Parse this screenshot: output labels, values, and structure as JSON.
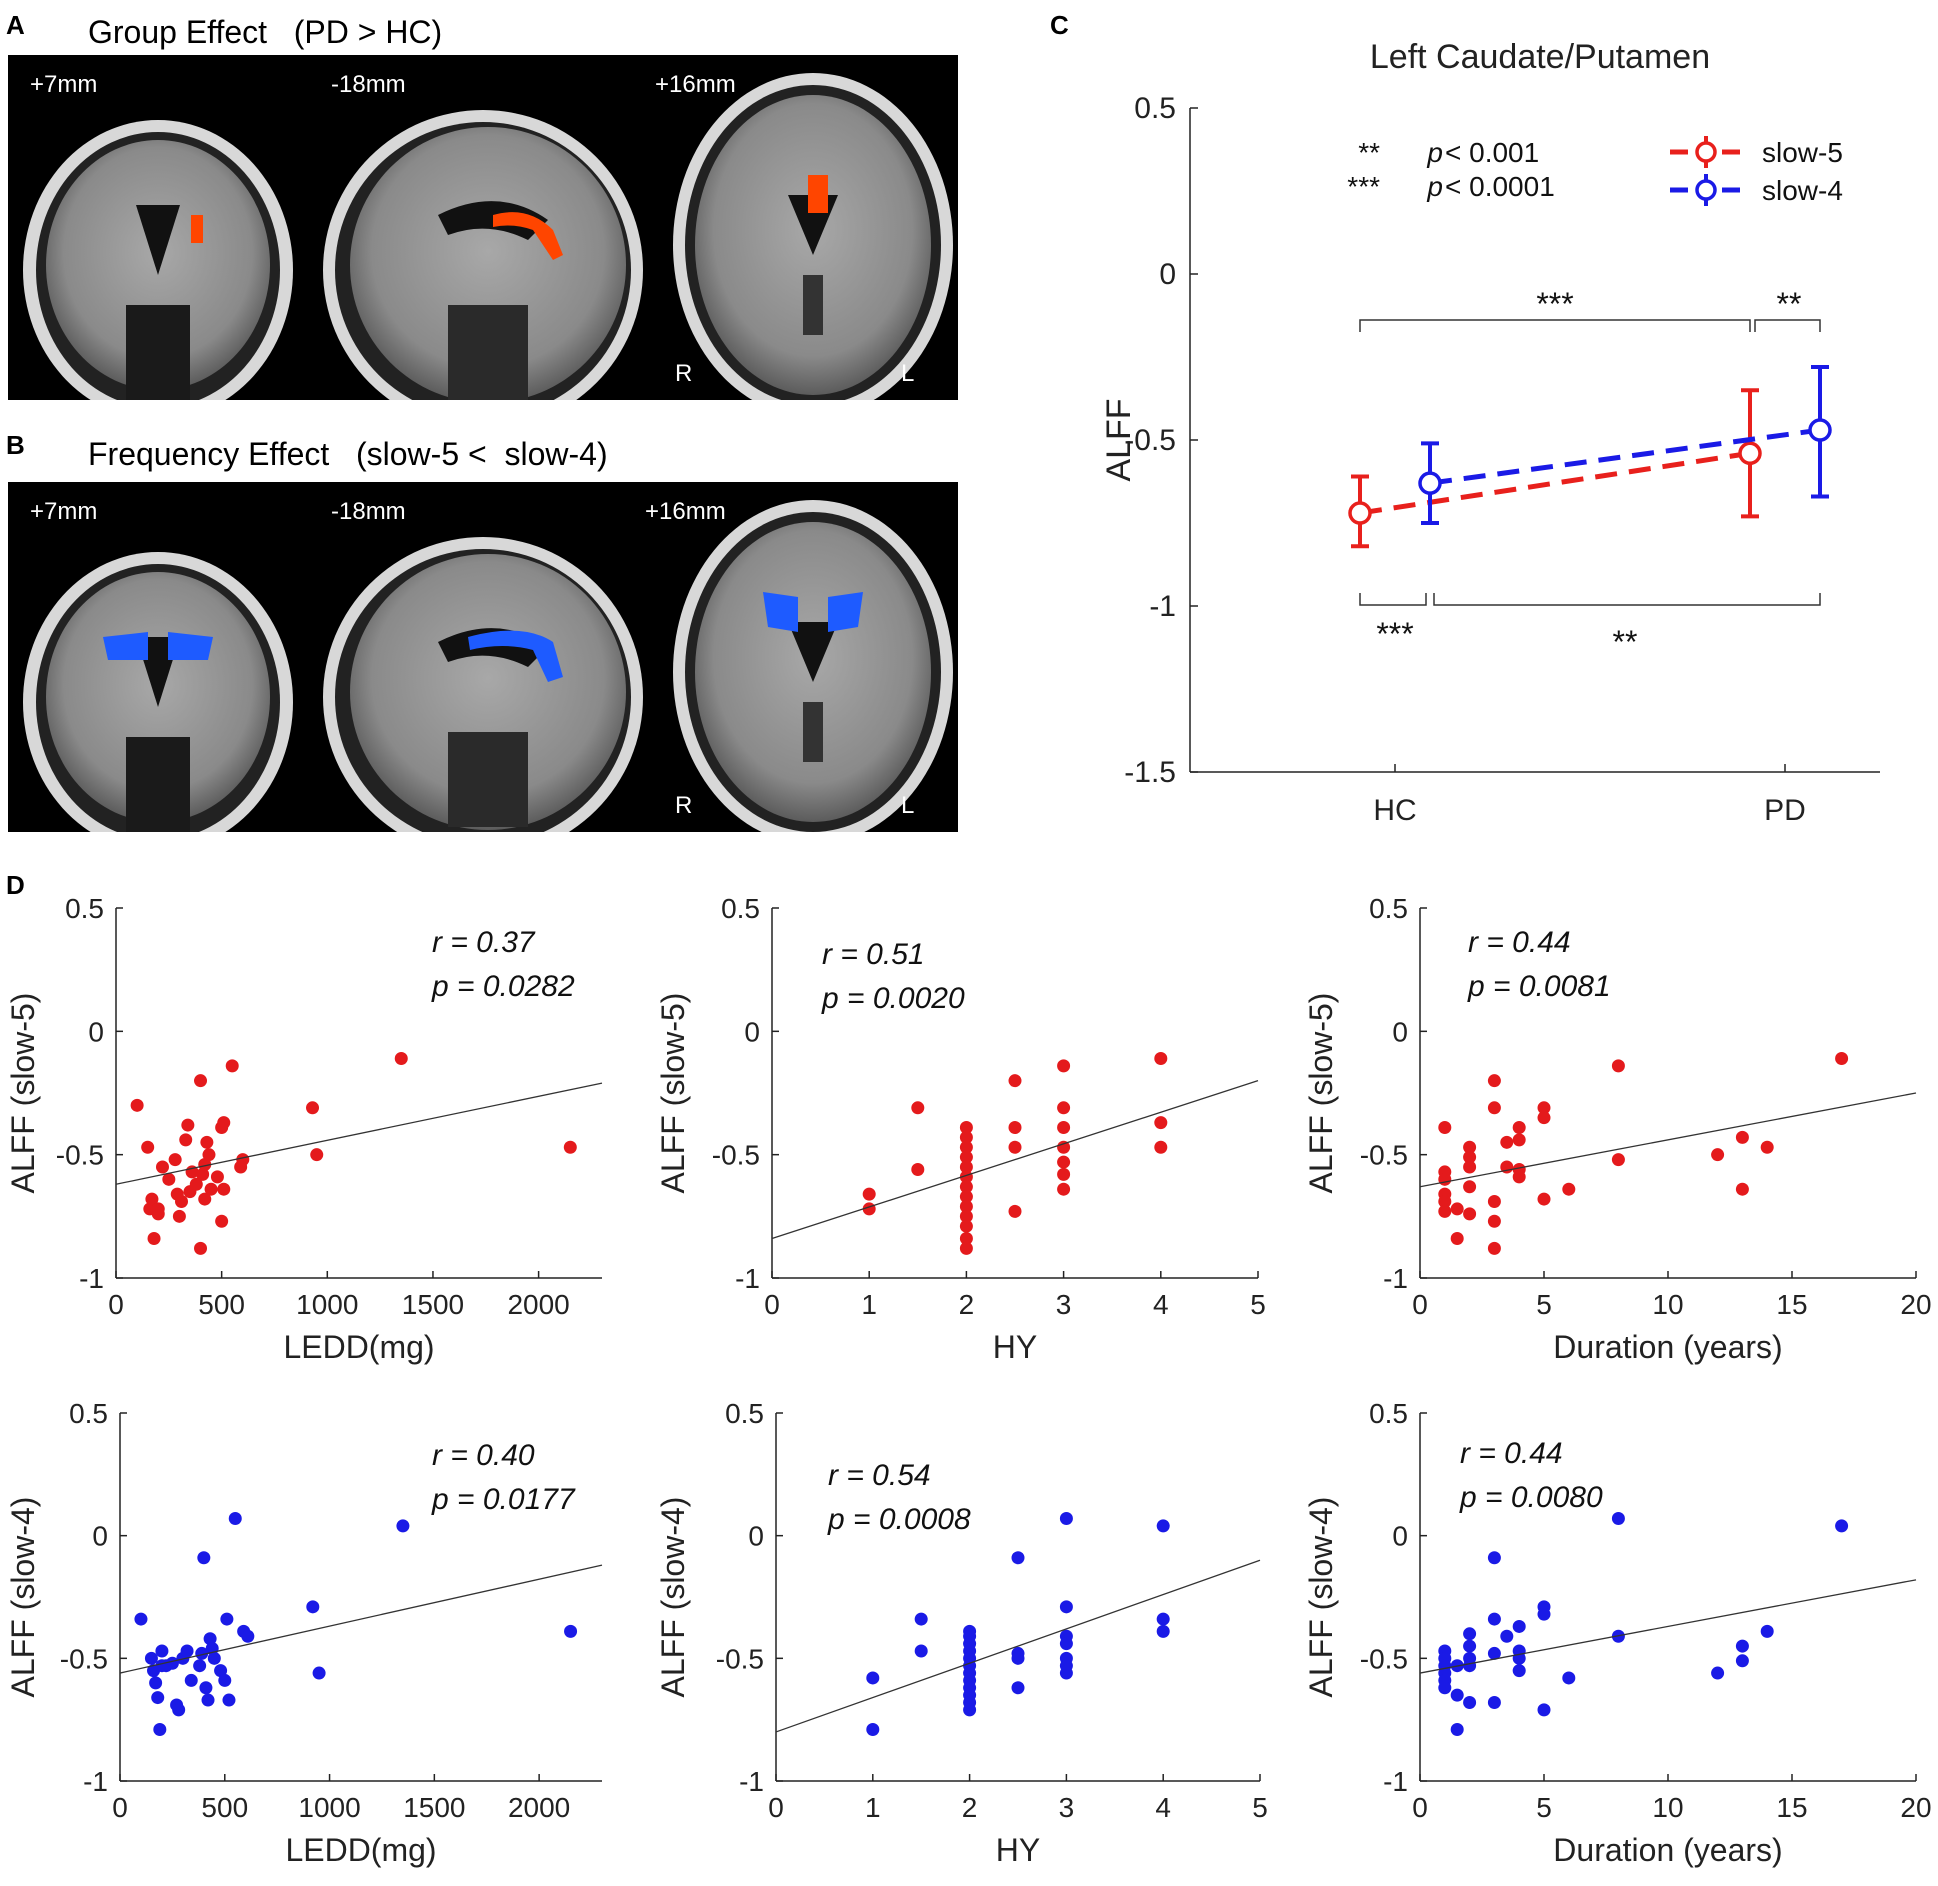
{
  "panels": {
    "a": {
      "letter": "A",
      "title": "Group Effect   (PD > HC)",
      "slices": [
        "+7mm",
        "-18mm",
        "+16mm"
      ],
      "orient_r": "R",
      "orient_l": "L",
      "blob_color": "#ff4500"
    },
    "b": {
      "letter": "B",
      "title": "Frequency Effect   (slow-5 <  slow-4)",
      "slices": [
        "+7mm",
        "-18mm",
        "+16mm"
      ],
      "orient_r": "R",
      "orient_l": "L",
      "blob_color": "#1e5bff"
    },
    "c": {
      "letter": "C"
    },
    "d": {
      "letter": "D"
    }
  },
  "colors": {
    "slow5": "#e8201c",
    "slow4": "#1a1ae6",
    "red_pt": "#e41a1c",
    "blue_pt": "#1a1ae6"
  },
  "chart_data": [
    {
      "id": "C",
      "type": "line",
      "title": "Left Caudate/Putamen",
      "ylabel": "ALFF",
      "xlabel": "",
      "categories": [
        "HC",
        "PD"
      ],
      "ylim": [
        -1.5,
        0.5
      ],
      "yticks": [
        0.5,
        0,
        -0.5,
        -1,
        -1.5
      ],
      "ytick_labels": [
        "0.5",
        "0",
        "-0.5",
        "-1",
        "-1.5"
      ],
      "series": [
        {
          "name": "slow-5",
          "values": [
            -0.72,
            -0.54
          ],
          "err_low": [
            -0.82,
            -0.73
          ],
          "err_high": [
            -0.61,
            -0.35
          ]
        },
        {
          "name": "slow-4",
          "values": [
            -0.63,
            -0.47
          ],
          "err_low": [
            -0.75,
            -0.67
          ],
          "err_high": [
            -0.51,
            -0.28
          ]
        }
      ],
      "legend": [
        "slow-5",
        "slow-4"
      ],
      "sig_legend": [
        {
          "stars": "**",
          "p": "p",
          "text": " < 0.001"
        },
        {
          "stars": "***",
          "p": "p",
          "text": " < 0.0001"
        }
      ],
      "brackets": [
        {
          "label": "***",
          "between": "HC and PD slow-5"
        },
        {
          "label": "**",
          "between": "PD slow-5 and slow-4"
        },
        {
          "label": "***",
          "between": "HC slow-5 and slow-4"
        },
        {
          "label": "**",
          "between": "HC slow-4 and PD slow-4"
        }
      ]
    },
    {
      "id": "D1",
      "type": "scatter",
      "xlabel": "LEDD(mg)",
      "ylabel": "ALFF (slow-5)",
      "color": "red",
      "xlim": [
        0,
        2300
      ],
      "ylim": [
        -1,
        0.5
      ],
      "xticks": [
        0,
        500,
        1000,
        1500,
        2000
      ],
      "xtick_labels": [
        "0",
        "500",
        "1000",
        "1500",
        "2000"
      ],
      "yticks": [
        0.5,
        0,
        -0.5,
        -1
      ],
      "ytick_labels": [
        "0.5",
        "0",
        "-0.5",
        "-1"
      ],
      "r": "r = 0.37",
      "p": "p = 0.0282",
      "fit": [
        [
          0,
          -0.62
        ],
        [
          2300,
          -0.21
        ]
      ],
      "points": [
        [
          100,
          -0.3
        ],
        [
          150,
          -0.47
        ],
        [
          160,
          -0.72
        ],
        [
          170,
          -0.68
        ],
        [
          200,
          -0.74
        ],
        [
          180,
          -0.84
        ],
        [
          220,
          -0.55
        ],
        [
          250,
          -0.6
        ],
        [
          280,
          -0.52
        ],
        [
          300,
          -0.75
        ],
        [
          310,
          -0.69
        ],
        [
          330,
          -0.44
        ],
        [
          340,
          -0.38
        ],
        [
          350,
          -0.65
        ],
        [
          360,
          -0.57
        ],
        [
          380,
          -0.62
        ],
        [
          400,
          -0.2
        ],
        [
          410,
          -0.58
        ],
        [
          420,
          -0.54
        ],
        [
          430,
          -0.45
        ],
        [
          440,
          -0.5
        ],
        [
          400,
          -0.88
        ],
        [
          420,
          -0.68
        ],
        [
          450,
          -0.64
        ],
        [
          480,
          -0.59
        ],
        [
          500,
          -0.39
        ],
        [
          510,
          -0.37
        ],
        [
          500,
          -0.77
        ],
        [
          510,
          -0.64
        ],
        [
          550,
          -0.14
        ],
        [
          590,
          -0.55
        ],
        [
          600,
          -0.52
        ],
        [
          930,
          -0.31
        ],
        [
          950,
          -0.5
        ],
        [
          1350,
          -0.11
        ],
        [
          2150,
          -0.47
        ],
        [
          200,
          -0.72
        ],
        [
          290,
          -0.66
        ]
      ]
    },
    {
      "id": "D2",
      "type": "scatter",
      "xlabel": "HY",
      "ylabel": "ALFF (slow-5)",
      "color": "red",
      "xlim": [
        0,
        5
      ],
      "ylim": [
        -1,
        0.5
      ],
      "xticks": [
        0,
        1,
        2,
        3,
        4,
        5
      ],
      "xtick_labels": [
        "0",
        "1",
        "2",
        "3",
        "4",
        "5"
      ],
      "yticks": [
        0.5,
        0,
        -0.5,
        -1
      ],
      "ytick_labels": [
        "0.5",
        "0",
        "-0.5",
        "-1"
      ],
      "r": "r = 0.51",
      "p": "p = 0.0020",
      "fit": [
        [
          0,
          -0.84
        ],
        [
          5,
          -0.2
        ]
      ],
      "points": [
        [
          1,
          -0.66
        ],
        [
          1,
          -0.72
        ],
        [
          1.5,
          -0.31
        ],
        [
          1.5,
          -0.56
        ],
        [
          2,
          -0.39
        ],
        [
          2,
          -0.43
        ],
        [
          2,
          -0.47
        ],
        [
          2,
          -0.51
        ],
        [
          2,
          -0.55
        ],
        [
          2,
          -0.59
        ],
        [
          2,
          -0.63
        ],
        [
          2,
          -0.67
        ],
        [
          2,
          -0.71
        ],
        [
          2,
          -0.75
        ],
        [
          2,
          -0.79
        ],
        [
          2,
          -0.84
        ],
        [
          2,
          -0.88
        ],
        [
          2.5,
          -0.2
        ],
        [
          2.5,
          -0.39
        ],
        [
          2.5,
          -0.47
        ],
        [
          2.5,
          -0.73
        ],
        [
          3,
          -0.14
        ],
        [
          3,
          -0.31
        ],
        [
          3,
          -0.39
        ],
        [
          3,
          -0.47
        ],
        [
          3,
          -0.53
        ],
        [
          3,
          -0.58
        ],
        [
          3,
          -0.64
        ],
        [
          4,
          -0.11
        ],
        [
          4,
          -0.37
        ],
        [
          4,
          -0.47
        ]
      ]
    },
    {
      "id": "D3",
      "type": "scatter",
      "xlabel": "Duration (years)",
      "ylabel": "ALFF (slow-5)",
      "color": "red",
      "xlim": [
        0,
        20
      ],
      "ylim": [
        -1,
        0.5
      ],
      "xticks": [
        0,
        5,
        10,
        15,
        20
      ],
      "xtick_labels": [
        "0",
        "5",
        "10",
        "15",
        "20"
      ],
      "yticks": [
        0.5,
        0,
        -0.5,
        -1
      ],
      "ytick_labels": [
        "0.5",
        "0",
        "-0.5",
        "-1"
      ],
      "r": "r = 0.44",
      "p": "p = 0.0081",
      "fit": [
        [
          0,
          -0.63
        ],
        [
          20,
          -0.25
        ]
      ],
      "points": [
        [
          1,
          -0.39
        ],
        [
          1,
          -0.57
        ],
        [
          1,
          -0.6
        ],
        [
          1,
          -0.66
        ],
        [
          1,
          -0.69
        ],
        [
          1,
          -0.73
        ],
        [
          1.5,
          -0.72
        ],
        [
          1.5,
          -0.84
        ],
        [
          2,
          -0.47
        ],
        [
          2,
          -0.51
        ],
        [
          2,
          -0.55
        ],
        [
          2,
          -0.63
        ],
        [
          2,
          -0.74
        ],
        [
          3,
          -0.2
        ],
        [
          3,
          -0.31
        ],
        [
          3,
          -0.69
        ],
        [
          3,
          -0.77
        ],
        [
          3,
          -0.88
        ],
        [
          3.5,
          -0.55
        ],
        [
          3.5,
          -0.45
        ],
        [
          4,
          -0.39
        ],
        [
          4,
          -0.44
        ],
        [
          4,
          -0.56
        ],
        [
          4,
          -0.59
        ],
        [
          5,
          -0.31
        ],
        [
          5,
          -0.35
        ],
        [
          5,
          -0.68
        ],
        [
          6,
          -0.64
        ],
        [
          8,
          -0.14
        ],
        [
          8,
          -0.52
        ],
        [
          12,
          -0.5
        ],
        [
          13,
          -0.43
        ],
        [
          13,
          -0.64
        ],
        [
          14,
          -0.47
        ],
        [
          17,
          -0.11
        ]
      ]
    },
    {
      "id": "D4",
      "type": "scatter",
      "xlabel": "LEDD(mg)",
      "ylabel": "ALFF (slow-4)",
      "color": "blue",
      "xlim": [
        0,
        2300
      ],
      "ylim": [
        -1,
        0.5
      ],
      "xticks": [
        0,
        500,
        1000,
        1500,
        2000
      ],
      "xtick_labels": [
        "0",
        "500",
        "1000",
        "1500",
        "2000"
      ],
      "yticks": [
        0.5,
        0,
        -0.5,
        -1
      ],
      "ytick_labels": [
        "0.5",
        "0",
        "-0.5",
        "-1"
      ],
      "r": "r = 0.40",
      "p": "p = 0.0177",
      "fit": [
        [
          0,
          -0.56
        ],
        [
          2300,
          -0.12
        ]
      ],
      "points": [
        [
          100,
          -0.34
        ],
        [
          150,
          -0.5
        ],
        [
          160,
          -0.55
        ],
        [
          170,
          -0.6
        ],
        [
          180,
          -0.66
        ],
        [
          190,
          -0.79
        ],
        [
          200,
          -0.47
        ],
        [
          220,
          -0.53
        ],
        [
          250,
          -0.52
        ],
        [
          270,
          -0.69
        ],
        [
          280,
          -0.71
        ],
        [
          300,
          -0.5
        ],
        [
          320,
          -0.47
        ],
        [
          340,
          -0.59
        ],
        [
          380,
          -0.53
        ],
        [
          390,
          -0.48
        ],
        [
          400,
          -0.09
        ],
        [
          410,
          -0.62
        ],
        [
          420,
          -0.67
        ],
        [
          430,
          -0.42
        ],
        [
          440,
          -0.46
        ],
        [
          450,
          -0.5
        ],
        [
          480,
          -0.55
        ],
        [
          500,
          -0.59
        ],
        [
          510,
          -0.34
        ],
        [
          520,
          -0.67
        ],
        [
          550,
          0.07
        ],
        [
          590,
          -0.39
        ],
        [
          610,
          -0.41
        ],
        [
          920,
          -0.29
        ],
        [
          950,
          -0.56
        ],
        [
          1350,
          0.04
        ],
        [
          2150,
          -0.39
        ],
        [
          200,
          -0.53
        ]
      ]
    },
    {
      "id": "D5",
      "type": "scatter",
      "xlabel": "HY",
      "ylabel": "ALFF (slow-4)",
      "color": "blue",
      "xlim": [
        0,
        5
      ],
      "ylim": [
        -1,
        0.5
      ],
      "xticks": [
        0,
        1,
        2,
        3,
        4,
        5
      ],
      "xtick_labels": [
        "0",
        "1",
        "2",
        "3",
        "4",
        "5"
      ],
      "yticks": [
        0.5,
        0,
        -0.5,
        -1
      ],
      "ytick_labels": [
        "0.5",
        "0",
        "-0.5",
        "-1"
      ],
      "r": "r = 0.54",
      "p": "p = 0.0008",
      "fit": [
        [
          0,
          -0.8
        ],
        [
          5,
          -0.1
        ]
      ],
      "points": [
        [
          1,
          -0.58
        ],
        [
          1,
          -0.79
        ],
        [
          1.5,
          -0.34
        ],
        [
          1.5,
          -0.47
        ],
        [
          2,
          -0.39
        ],
        [
          2,
          -0.41
        ],
        [
          2,
          -0.44
        ],
        [
          2,
          -0.47
        ],
        [
          2,
          -0.5
        ],
        [
          2,
          -0.53
        ],
        [
          2,
          -0.56
        ],
        [
          2,
          -0.59
        ],
        [
          2,
          -0.62
        ],
        [
          2,
          -0.65
        ],
        [
          2,
          -0.68
        ],
        [
          2,
          -0.71
        ],
        [
          2.5,
          -0.09
        ],
        [
          2.5,
          -0.48
        ],
        [
          2.5,
          -0.5
        ],
        [
          2.5,
          -0.62
        ],
        [
          3,
          0.07
        ],
        [
          3,
          -0.29
        ],
        [
          3,
          -0.41
        ],
        [
          3,
          -0.44
        ],
        [
          3,
          -0.5
        ],
        [
          3,
          -0.53
        ],
        [
          3,
          -0.56
        ],
        [
          4,
          0.04
        ],
        [
          4,
          -0.34
        ],
        [
          4,
          -0.39
        ]
      ]
    },
    {
      "id": "D6",
      "type": "scatter",
      "xlabel": "Duration (years)",
      "ylabel": "ALFF (slow-4)",
      "color": "blue",
      "xlim": [
        0,
        20
      ],
      "ylim": [
        -1,
        0.5
      ],
      "xticks": [
        0,
        5,
        10,
        15,
        20
      ],
      "xtick_labels": [
        "0",
        "5",
        "10",
        "15",
        "20"
      ],
      "yticks": [
        0.5,
        0,
        -0.5,
        -1
      ],
      "ytick_labels": [
        "0.5",
        "0",
        "-0.5",
        "-1"
      ],
      "r": "r = 0.44",
      "p": "p = 0.0080",
      "fit": [
        [
          0,
          -0.56
        ],
        [
          20,
          -0.18
        ]
      ],
      "points": [
        [
          1,
          -0.47
        ],
        [
          1,
          -0.5
        ],
        [
          1,
          -0.53
        ],
        [
          1,
          -0.56
        ],
        [
          1,
          -0.59
        ],
        [
          1,
          -0.62
        ],
        [
          1.5,
          -0.53
        ],
        [
          1.5,
          -0.65
        ],
        [
          1.5,
          -0.79
        ],
        [
          2,
          -0.4
        ],
        [
          2,
          -0.45
        ],
        [
          2,
          -0.5
        ],
        [
          2,
          -0.53
        ],
        [
          2,
          -0.68
        ],
        [
          3,
          -0.09
        ],
        [
          3,
          -0.34
        ],
        [
          3,
          -0.48
        ],
        [
          3,
          -0.68
        ],
        [
          3.5,
          -0.41
        ],
        [
          4,
          -0.37
        ],
        [
          4,
          -0.47
        ],
        [
          4,
          -0.5
        ],
        [
          4,
          -0.55
        ],
        [
          5,
          -0.29
        ],
        [
          5,
          -0.32
        ],
        [
          5,
          -0.71
        ],
        [
          6,
          -0.58
        ],
        [
          8,
          0.07
        ],
        [
          8,
          -0.41
        ],
        [
          12,
          -0.56
        ],
        [
          13,
          -0.45
        ],
        [
          13,
          -0.51
        ],
        [
          14,
          -0.39
        ],
        [
          17,
          0.04
        ]
      ]
    }
  ]
}
